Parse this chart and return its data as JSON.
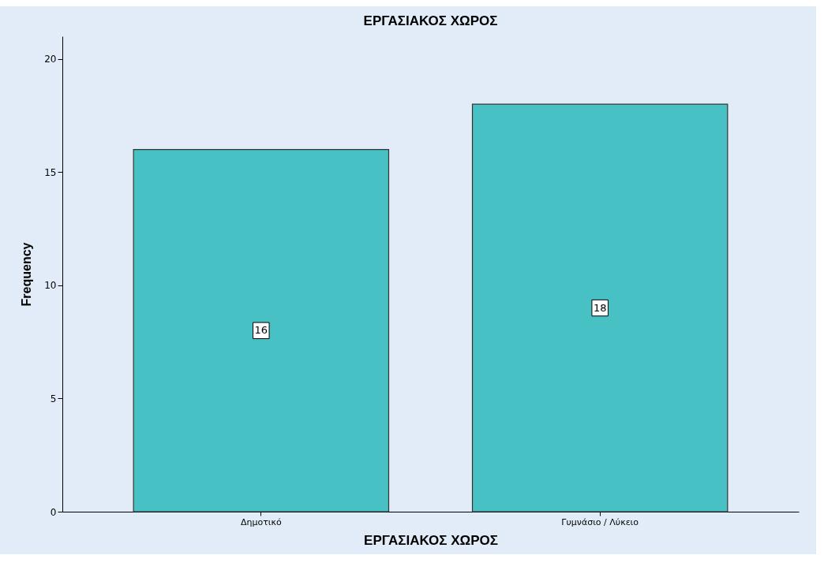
{
  "chart_data": {
    "type": "bar",
    "title": "ΕΡΓΑΣΙΑΚΟΣ ΧΩΡΟΣ",
    "xlabel": "ΕΡΓΑΣΙΑΚΟΣ ΧΩΡΟΣ",
    "ylabel": "Frequency",
    "categories": [
      "Δημοτικό",
      "Γυμνάσιο / Λύκειο"
    ],
    "values": [
      16,
      18
    ],
    "color": "#48c1c5",
    "ylim": [
      0,
      21
    ],
    "yticks": [
      0,
      5,
      10,
      15,
      20
    ],
    "grid": false,
    "data_labels": true
  }
}
